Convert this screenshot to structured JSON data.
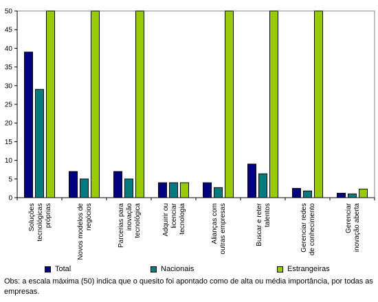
{
  "chart_data": {
    "type": "bar",
    "categories": [
      [
        "Soluções",
        "tecnológicas",
        "próprias"
      ],
      [
        "Novos modelos de",
        "negócios"
      ],
      [
        "Parcerias para",
        "inovação",
        "tecnológica"
      ],
      [
        "Adquirir ou",
        "licenciar",
        "tecnologia"
      ],
      [
        "Alianças com",
        "outras empresas"
      ],
      [
        "Buscar e reter",
        "talentos"
      ],
      [
        "Gerenciar redes",
        "de conhecimento"
      ],
      [
        "Gerenciar",
        "inovação aberta"
      ]
    ],
    "series": [
      {
        "name": "Total",
        "color": "#000080",
        "values": [
          39,
          7,
          7,
          4,
          4,
          9,
          2.5,
          1.2
        ]
      },
      {
        "name": "Nacionais",
        "color": "#007C80",
        "values": [
          29,
          5,
          5,
          4,
          2.7,
          6.4,
          1.8,
          1
        ]
      },
      {
        "name": "Estrangeiras",
        "color": "#99CC00",
        "values": [
          50,
          50,
          50,
          4,
          50,
          50,
          50,
          2.3
        ]
      }
    ],
    "yticks": [
      0,
      5,
      10,
      15,
      20,
      25,
      30,
      35,
      40,
      45,
      50
    ],
    "ylim": [
      0,
      50
    ],
    "grid": false,
    "legend": "bottom"
  },
  "note": "Obs: a escala máxima (50) indica que o quesito foi apontado como de alta ou média importância, por todas as empresas."
}
